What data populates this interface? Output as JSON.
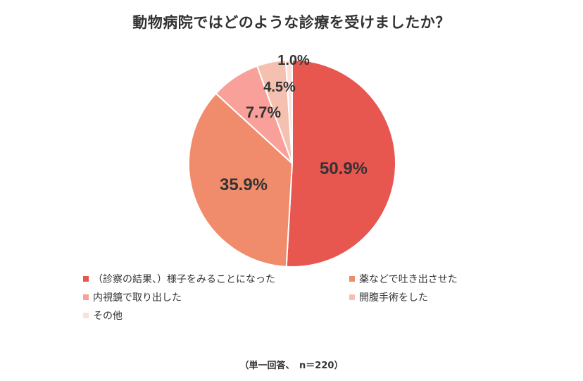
{
  "title": "動物病院ではどのような診療を受けましたか？",
  "footnote": "（単一回答、　n＝220）",
  "chart_data": {
    "type": "pie",
    "title": "動物病院ではどのような診療を受けましたか？",
    "categories": [
      "（診察の結果、）様子をみることになった",
      "薬などで吐き出させた",
      "内視鏡で取り出した",
      "開腹手術をした",
      "その他"
    ],
    "values": [
      50.9,
      35.9,
      7.7,
      4.5,
      1.0
    ],
    "labels": [
      "50.9%",
      "35.9%",
      "7.7%",
      "4.5%",
      "1.0%"
    ],
    "colors": [
      "#e85650",
      "#f08c6c",
      "#f9a09a",
      "#f6c0b0",
      "#fbe0dc"
    ],
    "start_angle": "12 o'clock",
    "direction": "clockwise",
    "legend_position": "bottom",
    "sample_size": "n=220",
    "answer_type": "単一回答"
  },
  "legend": [
    {
      "label": "（診察の結果、）様子をみることになった",
      "color": "#e85650"
    },
    {
      "label": "薬などで吐き出させた",
      "color": "#f08c6c"
    },
    {
      "label": "内視鏡で取り出した",
      "color": "#f9a09a"
    },
    {
      "label": "開腹手術をした",
      "color": "#f6c0b0"
    },
    {
      "label": "その他",
      "color": "#fbe0dc"
    }
  ]
}
